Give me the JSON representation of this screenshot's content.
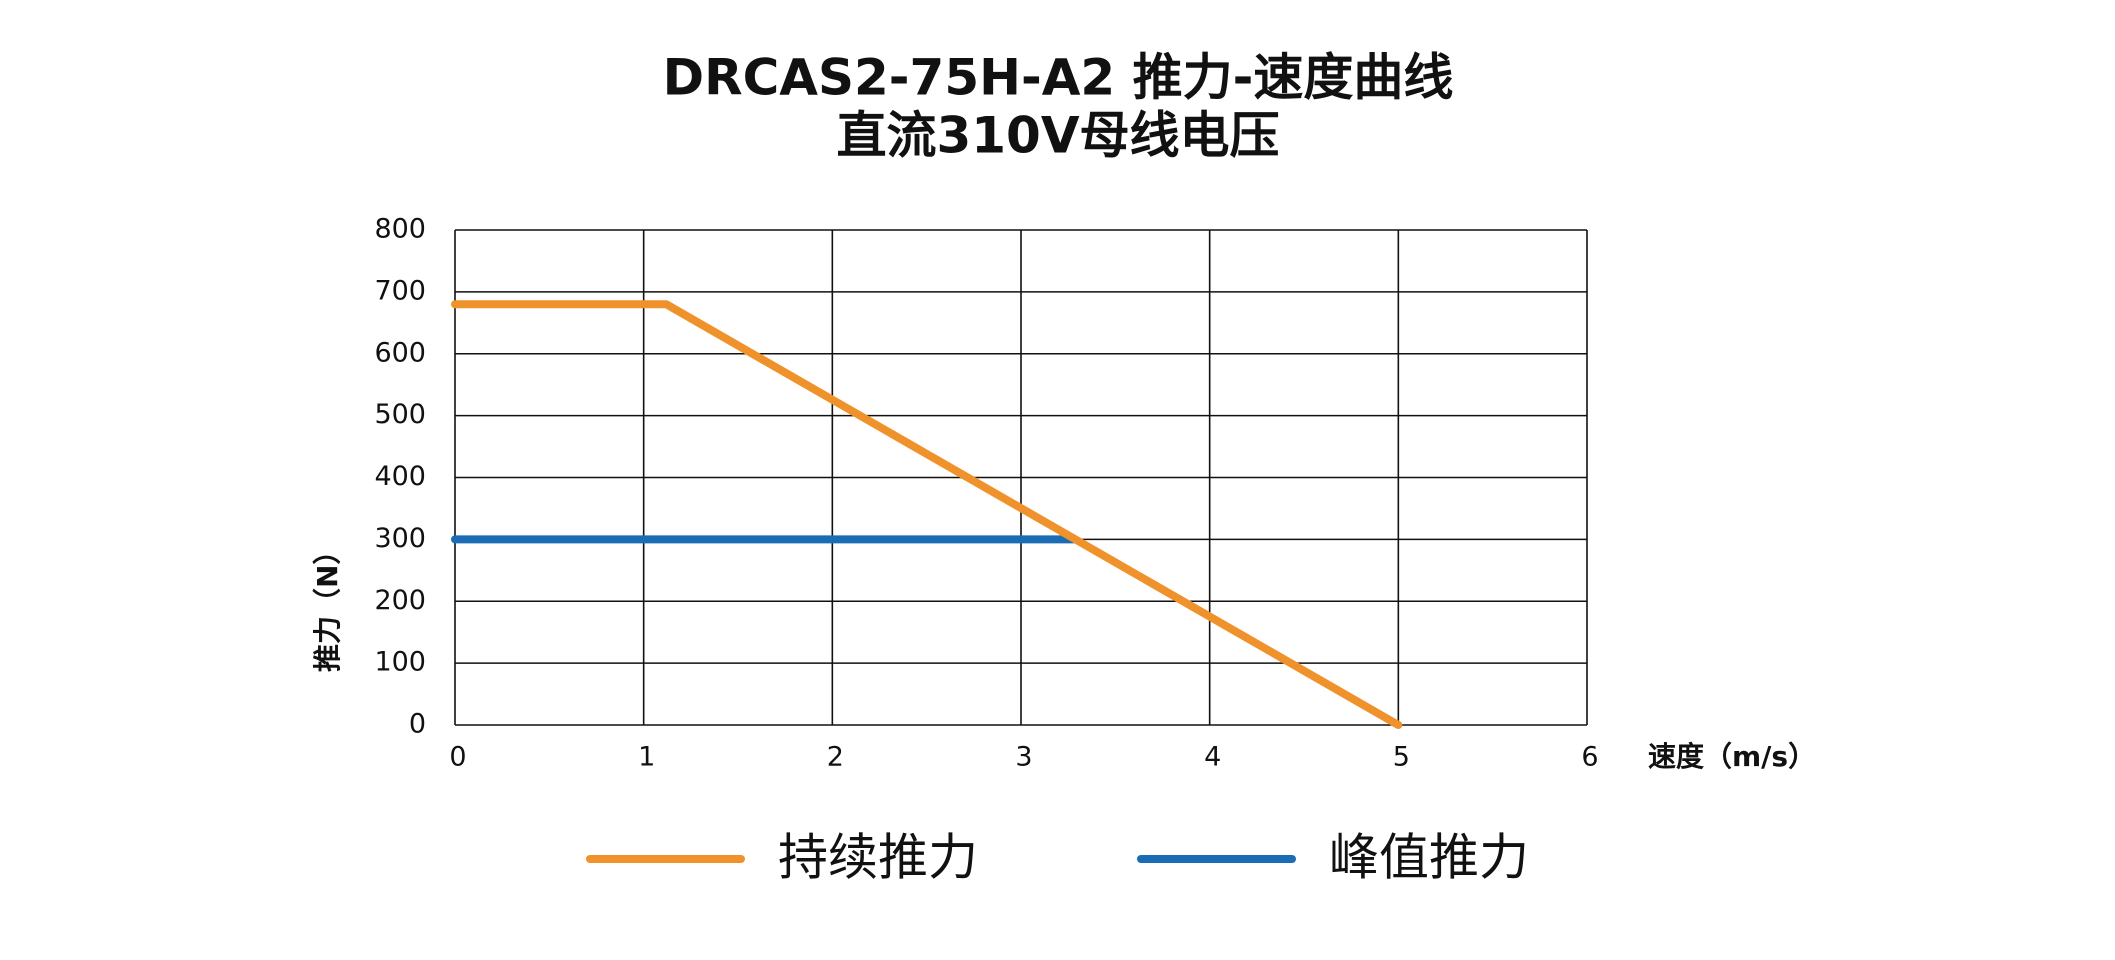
{
  "chart_data": {
    "type": "line",
    "title": "DRCAS2-75H-A2 推力-速度曲线",
    "subtitle": "直流310V母线电压",
    "x_label": "速度（m/s）",
    "y_label": "推力（N）",
    "xlim": [
      0,
      6
    ],
    "xticks": [
      0,
      1,
      2,
      3,
      4,
      5,
      6
    ],
    "ylim": [
      0,
      800
    ],
    "yticks": [
      0,
      100,
      200,
      300,
      400,
      500,
      600,
      700,
      800
    ],
    "grid": true,
    "series": [
      {
        "name": "持续推力",
        "color": "#f0922b",
        "x": [
          0,
          1.12,
          5
        ],
        "values": [
          680,
          680,
          0
        ]
      },
      {
        "name": "峰值推力",
        "color": "#1a6db5",
        "x": [
          0,
          3.28
        ],
        "values": [
          300,
          300
        ]
      }
    ]
  }
}
